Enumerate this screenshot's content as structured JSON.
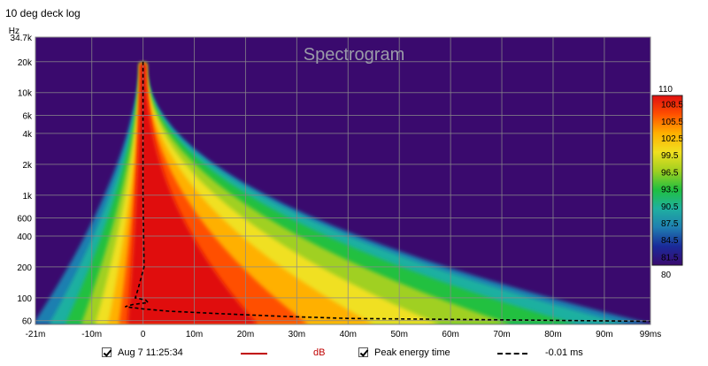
{
  "window": {
    "title": "10 deg deck log"
  },
  "chart_data": {
    "type": "heatmap",
    "title": "Spectrogram",
    "xlabel": "",
    "ylabel": "Hz",
    "x_ticks": [
      {
        "value": -21,
        "label": "-21m"
      },
      {
        "value": -10,
        "label": "-10m"
      },
      {
        "value": 0,
        "label": "0"
      },
      {
        "value": 10,
        "label": "10m"
      },
      {
        "value": 20,
        "label": "20m"
      },
      {
        "value": 30,
        "label": "30m"
      },
      {
        "value": 40,
        "label": "40m"
      },
      {
        "value": 50,
        "label": "50m"
      },
      {
        "value": 60,
        "label": "60m"
      },
      {
        "value": 70,
        "label": "70m"
      },
      {
        "value": 80,
        "label": "80m"
      },
      {
        "value": 90,
        "label": "90m"
      },
      {
        "value": 99,
        "label": "99ms"
      }
    ],
    "y_ticks": [
      {
        "value": 60,
        "label": "60"
      },
      {
        "value": 100,
        "label": "100"
      },
      {
        "value": 200,
        "label": "200"
      },
      {
        "value": 400,
        "label": "400"
      },
      {
        "value": 600,
        "label": "600"
      },
      {
        "value": 1000,
        "label": "1k"
      },
      {
        "value": 2000,
        "label": "2k"
      },
      {
        "value": 4000,
        "label": "4k"
      },
      {
        "value": 6000,
        "label": "6k"
      },
      {
        "value": 10000,
        "label": "10k"
      },
      {
        "value": 20000,
        "label": "20k"
      },
      {
        "value": 34700,
        "label": "34.7k"
      }
    ],
    "xlim": [
      -21,
      99
    ],
    "ylim": [
      55,
      34700
    ],
    "y_scale": "log",
    "grid": true,
    "colorbar": {
      "min": 80,
      "max": 110,
      "min_label": "80",
      "max_label": "110",
      "tick_labels": [
        "108.5",
        "105.5",
        "102.5",
        "99.5",
        "96.5",
        "93.5",
        "90.5",
        "87.5",
        "84.5",
        "81.5"
      ],
      "tick_values": [
        108.5,
        105.5,
        102.5,
        99.5,
        96.5,
        93.5,
        90.5,
        87.5,
        84.5,
        81.5
      ],
      "colors": [
        "#3a0a6e",
        "#1a2a9a",
        "#1f7fb0",
        "#1fb0a0",
        "#20c040",
        "#a0d020",
        "#f0e020",
        "#ffb000",
        "#ff5000",
        "#e01010"
      ]
    },
    "background_color": "#3a0a6e",
    "peak_energy_curve": {
      "name": "Peak energy time",
      "style": "dashed",
      "color": "#000000",
      "points": [
        {
          "f": 20000,
          "t": 0
        },
        {
          "f": 1000,
          "t": 0
        },
        {
          "f": 200,
          "t": 0.2
        },
        {
          "f": 120,
          "t": -1
        },
        {
          "f": 100,
          "t": -1.5
        },
        {
          "f": 95,
          "t": 0.5
        },
        {
          "f": 90,
          "t": 1
        },
        {
          "f": 86,
          "t": -2
        },
        {
          "f": 82,
          "t": -3.5
        },
        {
          "f": 78,
          "t": 0
        },
        {
          "f": 74,
          "t": 5
        },
        {
          "f": 70,
          "t": 15
        },
        {
          "f": 66,
          "t": 27
        },
        {
          "f": 63,
          "t": 40
        },
        {
          "f": 61,
          "t": 70
        },
        {
          "f": 59,
          "t": 99
        }
      ]
    }
  },
  "legend": {
    "series_label": "Aug 7 11:25:34",
    "series_color": "#c00000",
    "units_label": "dB",
    "peak_label": "Peak energy time",
    "peak_value": "-0.01 ms"
  }
}
